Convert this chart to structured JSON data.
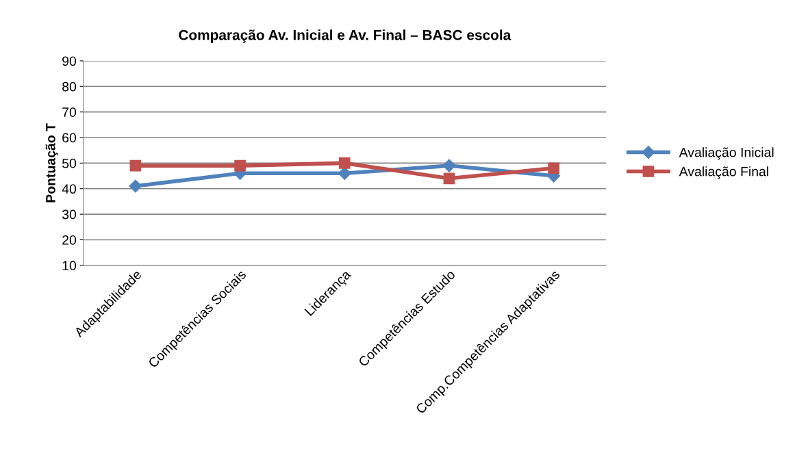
{
  "chart_data": {
    "type": "line",
    "title": "Comparação Av. Inicial e Av. Final – BASC escola",
    "ylabel": "Pontuação T",
    "categories": [
      "Adaptabilidade",
      "Competências Sociais",
      "Liderança",
      "Competências Estudo",
      "Comp.Competências Adaptativas"
    ],
    "series": [
      {
        "name": "Avaliação Inicial",
        "color": "#4f81bd",
        "marker": "diamond",
        "values": [
          41,
          46,
          46,
          49,
          45
        ]
      },
      {
        "name": "Avaliação Final",
        "color": "#c0504d",
        "marker": "square",
        "values": [
          49,
          49,
          50,
          44,
          48
        ]
      }
    ],
    "ylim": [
      10,
      90
    ],
    "yticks": [
      10,
      20,
      30,
      40,
      50,
      60,
      70,
      80,
      90
    ],
    "grid": "y",
    "legend": "right",
    "line_style": "solid"
  }
}
